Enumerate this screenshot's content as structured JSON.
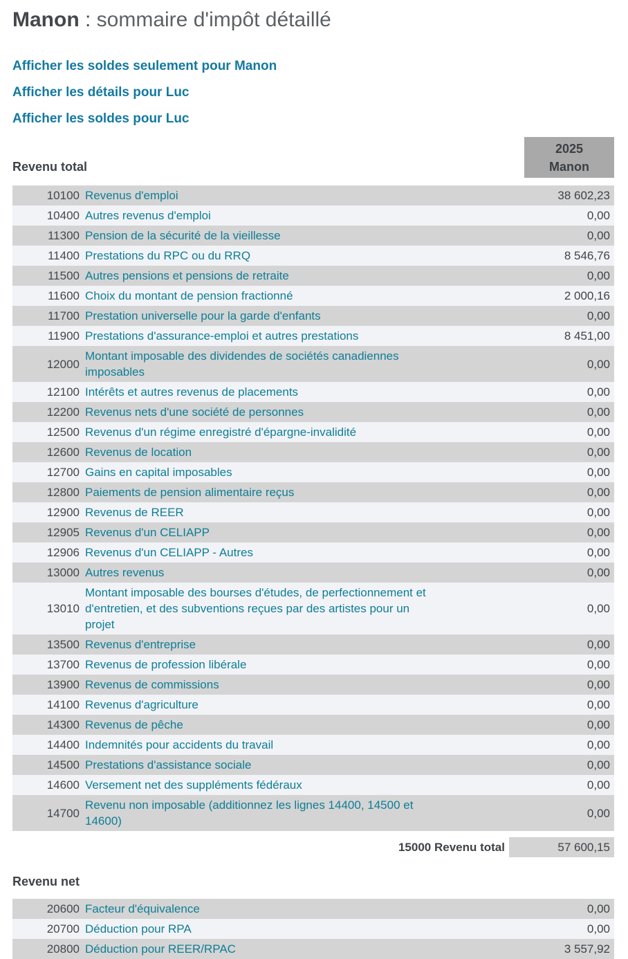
{
  "title": {
    "person": "Manon",
    "separator": " : ",
    "rest": "sommaire d'impôt détaillé"
  },
  "links": [
    {
      "label": "Afficher les soldes seulement pour Manon"
    },
    {
      "label": "Afficher les détails pour Luc"
    },
    {
      "label": "Afficher les soldes pour Luc"
    }
  ],
  "column_header": {
    "year": "2025",
    "person": "Manon"
  },
  "colors": {
    "link_teal": "#1379a1",
    "description_teal": "#0e7e96",
    "row_gray": "#d4d4d4",
    "row_light": "#f2f3f7",
    "header_box_gray": "#a9a9a9",
    "text_dark": "#3f4347"
  },
  "sections": [
    {
      "label": "Revenu total",
      "rows": [
        {
          "line": "10100",
          "desc": "Revenus d'emploi",
          "value": "38 602,23"
        },
        {
          "line": "10400",
          "desc": "Autres revenus d'emploi",
          "value": "0,00"
        },
        {
          "line": "11300",
          "desc": "Pension de la sécurité de la vieillesse",
          "value": "0,00"
        },
        {
          "line": "11400",
          "desc": "Prestations du RPC ou du RRQ",
          "value": "8 546,76"
        },
        {
          "line": "11500",
          "desc": "Autres pensions et pensions de retraite",
          "value": "0,00"
        },
        {
          "line": "11600",
          "desc": "Choix du montant de pension fractionné",
          "value": "2 000,16"
        },
        {
          "line": "11700",
          "desc": "Prestation universelle pour la garde d'enfants",
          "value": "0,00"
        },
        {
          "line": "11900",
          "desc": "Prestations d'assurance-emploi et autres prestations",
          "value": "8 451,00"
        },
        {
          "line": "12000",
          "desc": "Montant imposable des dividendes de sociétés canadiennes imposables",
          "value": "0,00"
        },
        {
          "line": "12100",
          "desc": "Intérêts et autres revenus de placements",
          "value": "0,00"
        },
        {
          "line": "12200",
          "desc": "Revenus nets d'une société de personnes",
          "value": "0,00"
        },
        {
          "line": "12500",
          "desc": "Revenus d'un régime enregistré d'épargne-invalidité",
          "value": "0,00"
        },
        {
          "line": "12600",
          "desc": "Revenus de location",
          "value": "0,00"
        },
        {
          "line": "12700",
          "desc": "Gains en capital imposables",
          "value": "0,00"
        },
        {
          "line": "12800",
          "desc": "Paiements de pension alimentaire reçus",
          "value": "0,00"
        },
        {
          "line": "12900",
          "desc": "Revenus de REER",
          "value": "0,00"
        },
        {
          "line": "12905",
          "desc": "Revenus d'un CELIAPP",
          "value": "0,00"
        },
        {
          "line": "12906",
          "desc": "Revenus d'un CELIAPP - Autres",
          "value": "0,00"
        },
        {
          "line": "13000",
          "desc": "Autres revenus",
          "value": "0,00"
        },
        {
          "line": "13010",
          "desc": "Montant imposable des bourses d'études, de perfectionnement et d'entretien, et des subventions reçues par des artistes pour un projet",
          "value": "0,00"
        },
        {
          "line": "13500",
          "desc": "Revenus d'entreprise",
          "value": "0,00"
        },
        {
          "line": "13700",
          "desc": "Revenus de profession libérale",
          "value": "0,00"
        },
        {
          "line": "13900",
          "desc": "Revenus de commissions",
          "value": "0,00"
        },
        {
          "line": "14100",
          "desc": "Revenus d'agriculture",
          "value": "0,00"
        },
        {
          "line": "14300",
          "desc": "Revenus de pêche",
          "value": "0,00"
        },
        {
          "line": "14400",
          "desc": "Indemnités pour accidents du travail",
          "value": "0,00"
        },
        {
          "line": "14500",
          "desc": "Prestations d'assistance sociale",
          "value": "0,00"
        },
        {
          "line": "14600",
          "desc": "Versement net des suppléments fédéraux",
          "value": "0,00"
        },
        {
          "line": "14700",
          "desc": "Revenu non imposable (additionnez les lignes 14400, 14500 et 14600)",
          "value": "0,00"
        }
      ],
      "total": {
        "line": "15000",
        "label": "Revenu total",
        "value": "57 600,15"
      }
    },
    {
      "label": "Revenu net",
      "rows": [
        {
          "line": "20600",
          "desc": "Facteur d'équivalence",
          "value": "0,00"
        },
        {
          "line": "20700",
          "desc": "Déduction pour RPA",
          "value": "0,00"
        },
        {
          "line": "20800",
          "desc": "Déduction pour REER/RPAC",
          "value": "3 557,92"
        }
      ]
    }
  ]
}
